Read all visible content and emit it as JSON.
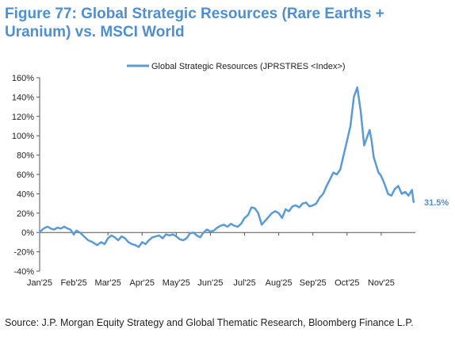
{
  "title": "Figure 77: Global Strategic Resources (Rare Earths + Uranium) vs. MSCI World",
  "source": "Source: J.P. Morgan Equity Strategy and Global Thematic Research, Bloomberg Finance L.P.",
  "colors": {
    "series": "#5b9bd5",
    "title": "#4f8fcf",
    "axis": "#555555"
  },
  "chart_data": {
    "type": "line",
    "title": "Figure 77: Global Strategic Resources (Rare Earths + Uranium) vs. MSCI World",
    "xlabel": "",
    "ylabel": "",
    "legend_position": "top",
    "grid": false,
    "ylim": [
      -40,
      160
    ],
    "yticks": [
      "-40%",
      "-20%",
      "0%",
      "20%",
      "40%",
      "60%",
      "80%",
      "100%",
      "120%",
      "140%",
      "160%"
    ],
    "ytick_values": [
      -40,
      -20,
      0,
      20,
      40,
      60,
      80,
      100,
      120,
      140,
      160
    ],
    "xticks": [
      "Jan'25",
      "Feb'25",
      "Mar'25",
      "Apr'25",
      "May'25",
      "Jun'25",
      "Jul'25",
      "Aug'25",
      "Sep'25",
      "Oct'25",
      "Nov'25"
    ],
    "last_value_label": "31.5%",
    "series": [
      {
        "name": "Global Strategic Resources (JPRSTRES <Index>)",
        "x": [
          0,
          0.08,
          0.16,
          0.24,
          0.33,
          0.42,
          0.52,
          0.62,
          0.72,
          0.82,
          0.9,
          1.0,
          1.08,
          1.18,
          1.3,
          1.42,
          1.55,
          1.68,
          1.8,
          1.9,
          2.0,
          2.1,
          2.2,
          2.3,
          2.4,
          2.5,
          2.6,
          2.7,
          2.8,
          2.9,
          3.0,
          3.1,
          3.2,
          3.3,
          3.4,
          3.5,
          3.6,
          3.7,
          3.8,
          3.9,
          4.0,
          4.1,
          4.2,
          4.3,
          4.4,
          4.5,
          4.6,
          4.7,
          4.8,
          4.9,
          5.0,
          5.1,
          5.2,
          5.3,
          5.4,
          5.5,
          5.6,
          5.7,
          5.8,
          5.9,
          6.0,
          6.1,
          6.2,
          6.3,
          6.4,
          6.5,
          6.6,
          6.7,
          6.8,
          6.9,
          7.0,
          7.1,
          7.2,
          7.3,
          7.4,
          7.5,
          7.6,
          7.7,
          7.8,
          7.9,
          8.0,
          8.1,
          8.2,
          8.3,
          8.4,
          8.5,
          8.6,
          8.7,
          8.8,
          8.9,
          9.0,
          9.1,
          9.2,
          9.3,
          9.4,
          9.5,
          9.6,
          9.66,
          9.72,
          9.78,
          9.85,
          9.92,
          9.97,
          10.0,
          10.05,
          10.1,
          10.2,
          10.3,
          10.4,
          10.5,
          10.6,
          10.7,
          10.8,
          10.9,
          10.95
        ],
        "y": [
          0,
          3,
          5,
          6,
          4,
          3,
          5,
          4,
          6,
          4,
          3,
          -2,
          2,
          0,
          -4,
          -8,
          -10,
          -13,
          -10,
          -12,
          -6,
          -3,
          -5,
          -8,
          -4,
          -6,
          -10,
          -12,
          -13,
          -15,
          -10,
          -12,
          -8,
          -5,
          -4,
          -3,
          -6,
          -2,
          -3,
          -2,
          -4,
          -7,
          -8,
          -6,
          -1,
          0,
          -3,
          -5,
          0,
          3,
          1,
          2,
          5,
          7,
          8,
          6,
          9,
          7,
          6,
          9,
          15,
          18,
          26,
          25,
          20,
          8,
          12,
          16,
          20,
          22,
          20,
          15,
          24,
          22,
          27,
          28,
          26,
          30,
          31,
          27,
          28,
          30,
          36,
          40,
          48,
          55,
          62,
          60,
          65,
          80,
          95,
          110,
          140,
          150,
          125,
          90,
          100,
          106,
          95,
          78,
          70,
          62,
          60,
          58,
          54,
          50,
          40,
          38,
          45,
          48,
          40,
          42,
          38,
          44,
          31.5
        ]
      }
    ]
  }
}
